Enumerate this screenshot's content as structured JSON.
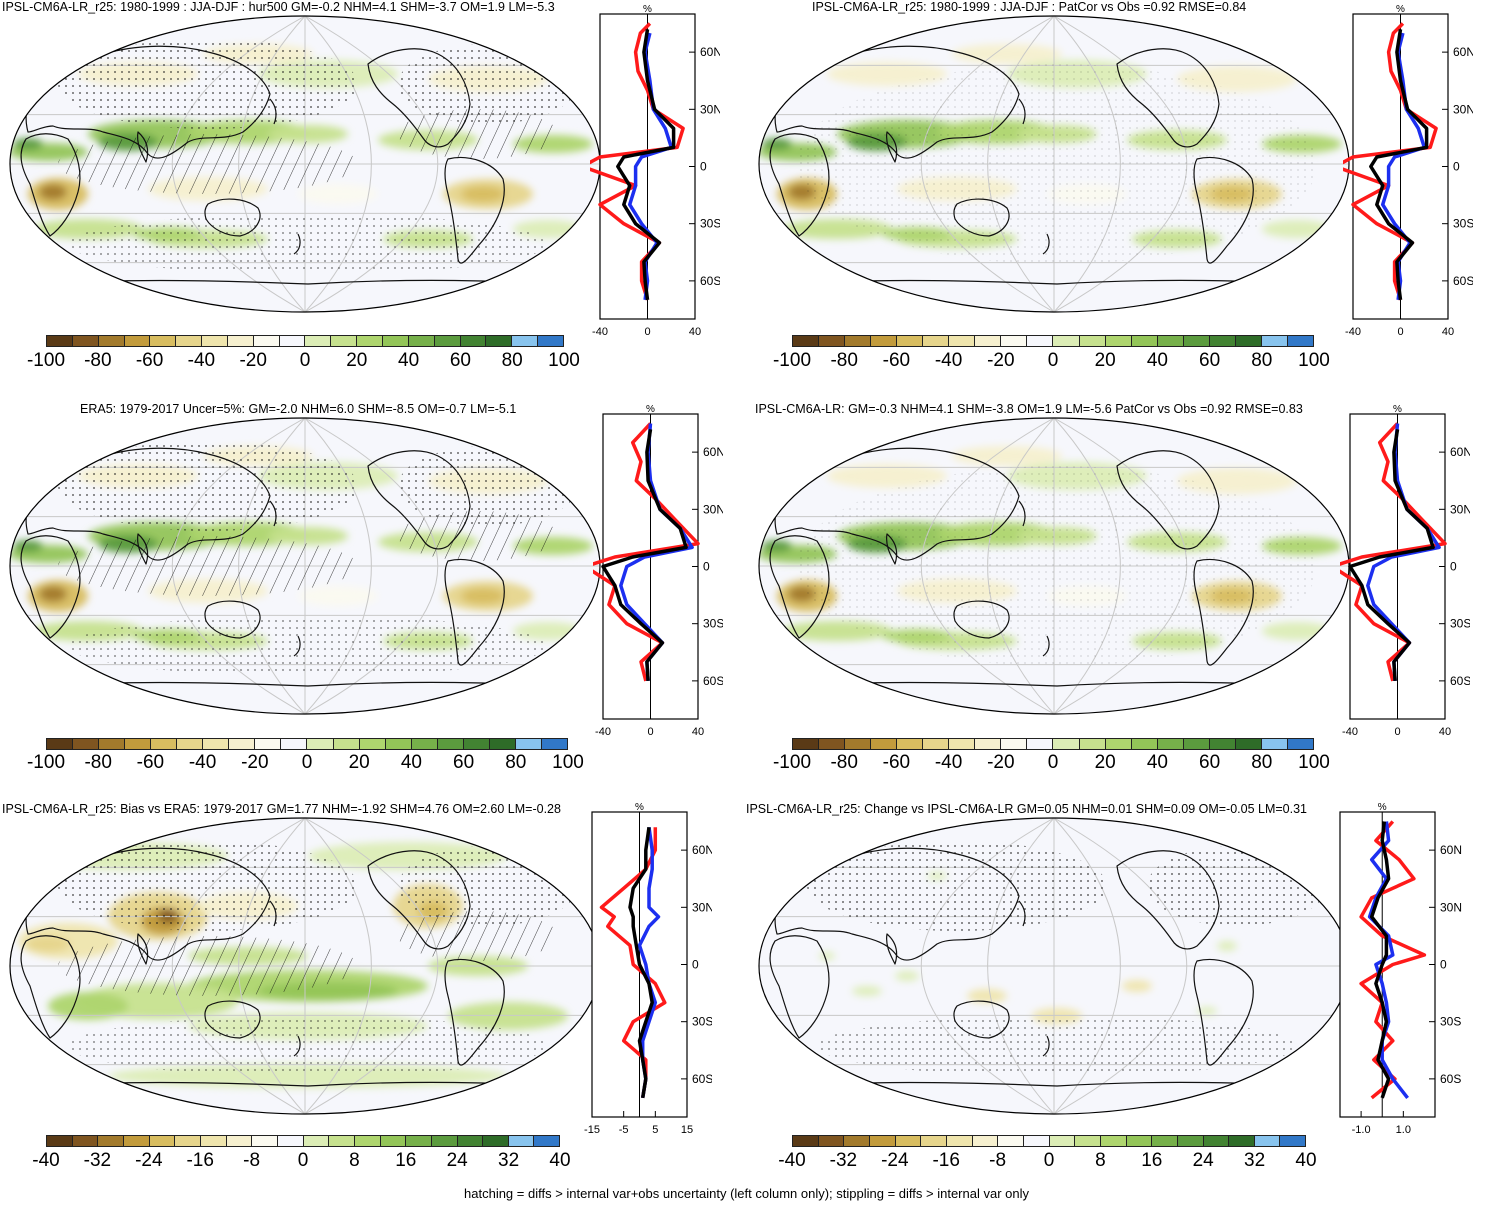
{
  "panels": [
    {
      "title": "IPSL-CM6A-LR_r25: 1980-1999 : JJA-DJF : hur500 GM=-0.2 NHM=4.1 SHM=-3.7 OM=1.9 LM=-5.3",
      "colorbar_labels": [
        "-100",
        "-80",
        "-60",
        "-40",
        "-20",
        "0",
        "20",
        "40",
        "60",
        "80",
        "100"
      ],
      "profile_x_ticks": [
        "-40",
        "0",
        "40"
      ],
      "profile_y_ticks": [
        "60N",
        "30N",
        "0",
        "30S",
        "60S"
      ],
      "profile_unit": "%"
    },
    {
      "title": "IPSL-CM6A-LR_r25: 1980-1999 : JJA-DJF : PatCor vs Obs =0.92 RMSE=0.84",
      "colorbar_labels": [
        "-100",
        "-80",
        "-60",
        "-40",
        "-20",
        "0",
        "20",
        "40",
        "60",
        "80",
        "100"
      ],
      "profile_x_ticks": [
        "-40",
        "0",
        "40"
      ],
      "profile_y_ticks": [
        "60N",
        "30N",
        "0",
        "30S",
        "60S"
      ],
      "profile_unit": "%"
    },
    {
      "title": "ERA5: 1979-2017 Uncer=5%: GM=-2.0 NHM=6.0 SHM=-8.5 OM=-0.7 LM=-5.1",
      "colorbar_labels": [
        "-100",
        "-80",
        "-60",
        "-40",
        "-20",
        "0",
        "20",
        "40",
        "60",
        "80",
        "100"
      ],
      "profile_x_ticks": [
        "-40",
        "0",
        "40"
      ],
      "profile_y_ticks": [
        "60N",
        "30N",
        "0",
        "30S",
        "60S"
      ],
      "profile_unit": "%"
    },
    {
      "title": "IPSL-CM6A-LR: GM=-0.3 NHM=4.1 SHM=-3.8 OM=1.9 LM=-5.6 PatCor vs Obs =0.92 RMSE=0.83",
      "colorbar_labels": [
        "-100",
        "-80",
        "-60",
        "-40",
        "-20",
        "0",
        "20",
        "40",
        "60",
        "80",
        "100"
      ],
      "profile_x_ticks": [
        "-40",
        "0",
        "40"
      ],
      "profile_y_ticks": [
        "60N",
        "30N",
        "0",
        "30S",
        "60S"
      ],
      "profile_unit": "%"
    },
    {
      "title": "IPSL-CM6A-LR_r25: Bias vs ERA5: 1979-2017 GM=1.77 NHM=-1.92 SHM=4.76 OM=2.60 LM=-0.28",
      "colorbar_labels": [
        "-40",
        "-32",
        "-24",
        "-16",
        "-8",
        "0",
        "8",
        "16",
        "24",
        "32",
        "40"
      ],
      "profile_x_ticks": [
        "-15",
        "-5",
        "5",
        "15"
      ],
      "profile_y_ticks": [
        "60N",
        "30N",
        "0",
        "30S",
        "60S"
      ],
      "profile_unit": "%"
    },
    {
      "title": "IPSL-CM6A-LR_r25: Change vs IPSL-CM6A-LR GM=0.05 NHM=0.01 SHM=0.09 OM=-0.05 LM=0.31",
      "colorbar_labels": [
        "-40",
        "-32",
        "-24",
        "-16",
        "-8",
        "0",
        "8",
        "16",
        "24",
        "32",
        "40"
      ],
      "profile_x_ticks": [
        "-1.0",
        "1.0"
      ],
      "profile_y_ticks": [
        "60N",
        "30N",
        "0",
        "30S",
        "60S"
      ],
      "profile_unit": "%"
    }
  ],
  "colors": {
    "palette": [
      "#5a3a16",
      "#7f5520",
      "#a27a2c",
      "#c29b3c",
      "#d8bd60",
      "#e6d58c",
      "#efe5ad",
      "#f6f0cf",
      "#fbfaf0",
      "#f6f7fc",
      "#dcedb6",
      "#c6e18e",
      "#aed56e",
      "#93c558",
      "#76b04a",
      "#5b9b3e",
      "#428332",
      "#2e6c28",
      "#88c4ee",
      "#3178c8"
    ],
    "profile_red": "#ff1a1a",
    "profile_blue": "#1c2ff0",
    "profile_black": "#000000",
    "ocean": "#f6f7fc"
  },
  "footer": "hatching = diffs > internal var+obs uncertainty (left column only); stippling = diffs > internal var only"
}
